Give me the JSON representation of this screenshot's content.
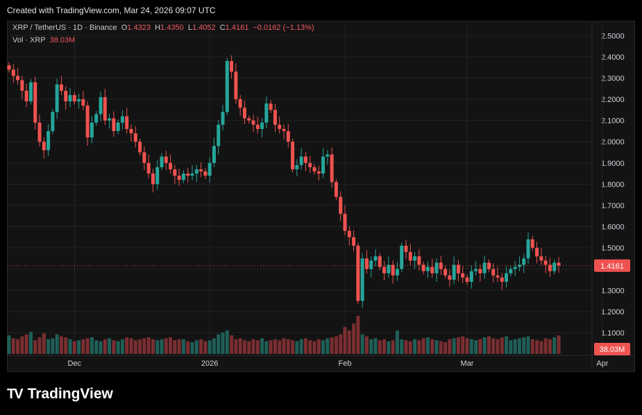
{
  "header": {
    "created": "Created with TradingView.com, Mar 24, 2026 09:07 UTC"
  },
  "legend": {
    "symbol": "XRP / TetherUS · 1D · Binance",
    "o_label": "O",
    "o": "1.4323",
    "h_label": "H",
    "h": "1.4350",
    "l_label": "L",
    "l": "1.4052",
    "c_label": "C",
    "c": "1.4161",
    "change": "−0.0162 (−1.13%)",
    "vol_label": "Vol · XRP",
    "vol": "38.03M"
  },
  "badges": {
    "price": "1.4161",
    "volume": "38.03M"
  },
  "brand": {
    "name": "TradingView",
    "logo": "TV"
  },
  "colors": {
    "up": "#26a69a",
    "down": "#ef5350",
    "up_vol": "#1f5f58",
    "down_vol": "#7a2e30",
    "bg": "#131313",
    "grid": "#232323"
  },
  "chart_data": {
    "type": "candlestick",
    "title": "XRP / TetherUS · 1D · Binance",
    "ylim": [
      1.0,
      2.55
    ],
    "y_ticks": [
      "2.5000",
      "2.4000",
      "2.3000",
      "2.2000",
      "2.1000",
      "2.0000",
      "1.9000",
      "1.8000",
      "1.7000",
      "1.6000",
      "1.5000",
      "1.4000",
      "1.3000",
      "1.2000",
      "1.1000"
    ],
    "x_ticks": [
      {
        "label": "Dec",
        "index": 15
      },
      {
        "label": "2026",
        "index": 46
      },
      {
        "label": "Feb",
        "index": 77
      },
      {
        "label": "Mar",
        "index": 105
      },
      {
        "label": "Apr",
        "index": 136
      }
    ],
    "last_price": 1.4161,
    "closes": [
      2.34,
      2.31,
      2.29,
      2.24,
      2.19,
      2.28,
      2.09,
      2.0,
      1.96,
      2.05,
      2.14,
      2.27,
      2.24,
      2.19,
      2.22,
      2.19,
      2.2,
      2.17,
      2.02,
      2.09,
      2.13,
      2.21,
      2.1,
      2.11,
      2.05,
      2.09,
      2.12,
      2.06,
      2.04,
      2.0,
      1.95,
      1.9,
      1.85,
      1.8,
      1.88,
      1.93,
      1.9,
      1.87,
      1.84,
      1.82,
      1.85,
      1.84,
      1.85,
      1.87,
      1.86,
      1.84,
      1.9,
      1.98,
      2.08,
      2.14,
      2.38,
      2.33,
      2.2,
      2.16,
      2.11,
      2.1,
      2.08,
      2.06,
      2.09,
      2.18,
      2.15,
      2.08,
      2.06,
      2.05,
      2.0,
      1.87,
      1.89,
      1.93,
      1.9,
      1.88,
      1.86,
      1.85,
      1.93,
      1.94,
      1.81,
      1.74,
      1.66,
      1.58,
      1.55,
      1.51,
      1.25,
      1.45,
      1.4,
      1.44,
      1.46,
      1.41,
      1.38,
      1.42,
      1.37,
      1.4,
      1.51,
      1.48,
      1.44,
      1.46,
      1.42,
      1.39,
      1.41,
      1.38,
      1.43,
      1.4,
      1.37,
      1.35,
      1.42,
      1.38,
      1.36,
      1.34,
      1.39,
      1.4,
      1.38,
      1.43,
      1.4,
      1.37,
      1.36,
      1.34,
      1.38,
      1.4,
      1.41,
      1.42,
      1.45,
      1.54,
      1.5,
      1.46,
      1.44,
      1.42,
      1.39,
      1.43,
      1.4161
    ],
    "volumes": [
      38,
      32,
      30,
      36,
      40,
      45,
      28,
      34,
      42,
      30,
      32,
      40,
      36,
      34,
      30,
      26,
      28,
      30,
      32,
      34,
      28,
      26,
      30,
      32,
      28,
      26,
      30,
      34,
      32,
      28,
      30,
      32,
      34,
      30,
      28,
      30,
      32,
      34,
      28,
      30,
      30,
      26,
      24,
      28,
      30,
      26,
      28,
      32,
      40,
      44,
      48,
      38,
      30,
      32,
      28,
      26,
      30,
      28,
      32,
      26,
      28,
      30,
      28,
      32,
      30,
      28,
      26,
      30,
      32,
      28,
      26,
      30,
      28,
      32,
      34,
      36,
      40,
      55,
      48,
      62,
      78,
      40,
      36,
      30,
      32,
      28,
      30,
      26,
      28,
      48,
      30,
      28,
      26,
      30,
      28,
      32,
      34,
      30,
      28,
      26,
      24,
      30,
      32,
      34,
      36,
      32,
      30,
      28,
      30,
      34,
      36,
      32,
      30,
      34,
      36,
      28,
      30,
      32,
      34,
      36,
      30,
      28,
      26,
      32,
      30,
      34,
      38
    ]
  }
}
